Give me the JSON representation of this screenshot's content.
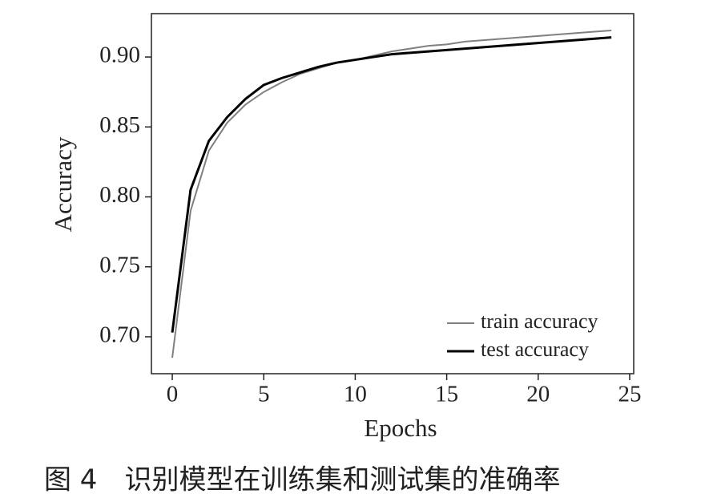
{
  "chart_data": {
    "type": "line",
    "caption": "图 4　识别模型在训练集和测试集的准确率",
    "x_label": "Epochs",
    "y_label": "Accuracy",
    "x": [
      0,
      1,
      2,
      3,
      4,
      5,
      6,
      7,
      8,
      9,
      10,
      11,
      12,
      13,
      14,
      15,
      16,
      17,
      18,
      19,
      20,
      21,
      22,
      23,
      24
    ],
    "series": [
      {
        "name": "train accuracy",
        "color": "#808080",
        "values": [
          0.685,
          0.79,
          0.833,
          0.853,
          0.866,
          0.875,
          0.882,
          0.888,
          0.892,
          0.896,
          0.898,
          0.901,
          0.904,
          0.906,
          0.908,
          0.909,
          0.911,
          0.912,
          0.913,
          0.914,
          0.915,
          0.916,
          0.917,
          0.918,
          0.919
        ]
      },
      {
        "name": "test accuracy",
        "color": "#000000",
        "values": [
          0.703,
          0.805,
          0.84,
          0.857,
          0.87,
          0.88,
          0.885,
          0.889,
          0.893,
          0.896,
          0.898,
          0.9,
          0.902,
          0.903,
          0.904,
          0.905,
          0.906,
          0.907,
          0.908,
          0.909,
          0.91,
          0.911,
          0.912,
          0.913,
          0.914
        ]
      }
    ],
    "xlim": [
      -1.14,
      25.22
    ],
    "xticks": [
      0,
      5,
      10,
      15,
      20,
      25
    ],
    "ylim": [
      0.6736,
      0.931
    ],
    "yticks": [
      {
        "value": 0.7,
        "label": "0.70"
      },
      0.75,
      {
        "value": 0.8,
        "label": "0.80"
      },
      0.85,
      {
        "value": 0.9,
        "label": "0.90"
      }
    ],
    "legend": "lower right",
    "grid": false
  }
}
